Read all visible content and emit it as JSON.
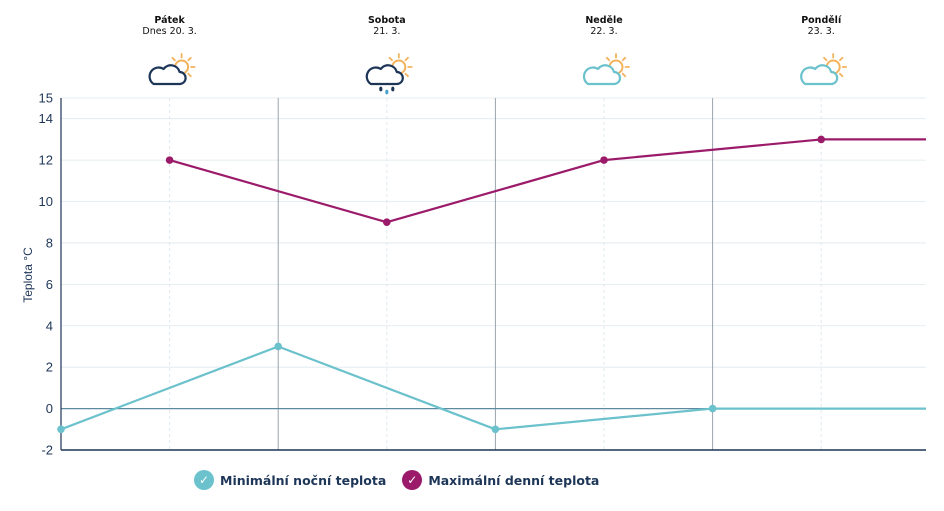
{
  "days": [
    {
      "name": "Pátek",
      "date": "Dnes 20. 3.",
      "icon": "cloud-sun-icon"
    },
    {
      "name": "Sobota",
      "date": "21. 3.",
      "icon": "cloud-sun-rain-icon"
    },
    {
      "name": "Neděle",
      "date": "22. 3.",
      "icon": "partly-cloudy-icon"
    },
    {
      "name": "Pondělí",
      "date": "23. 3.",
      "icon": "partly-cloudy-icon"
    }
  ],
  "legend": {
    "min_label": "Minimální noční teplota",
    "max_label": "Maximální denní teplota",
    "check": "✓"
  },
  "colors": {
    "min": "#6bc1cc",
    "max": "#9b1b6a",
    "axis": "#1d3557",
    "grid": "#dde8ee",
    "sun": "#f3b35c",
    "cloud_dark": "#1d3557",
    "cloud_light": "#6bc1cc"
  },
  "chart_data": {
    "type": "line",
    "title": "",
    "xlabel": "",
    "ylabel": "Teplota °C",
    "ylim": [
      -2,
      15
    ],
    "yticks": [
      -2,
      0,
      2,
      4,
      6,
      8,
      10,
      12,
      14,
      15
    ],
    "x_slots": 8,
    "series": [
      {
        "name": "Minimální noční teplota",
        "x": [
          0,
          2,
          4,
          6,
          8
        ],
        "values": [
          -1,
          3,
          -1,
          0,
          0
        ]
      },
      {
        "name": "Maximální denní teplota",
        "x": [
          1,
          3,
          5,
          7,
          8
        ],
        "values": [
          12,
          9,
          12,
          13,
          13
        ]
      }
    ]
  }
}
